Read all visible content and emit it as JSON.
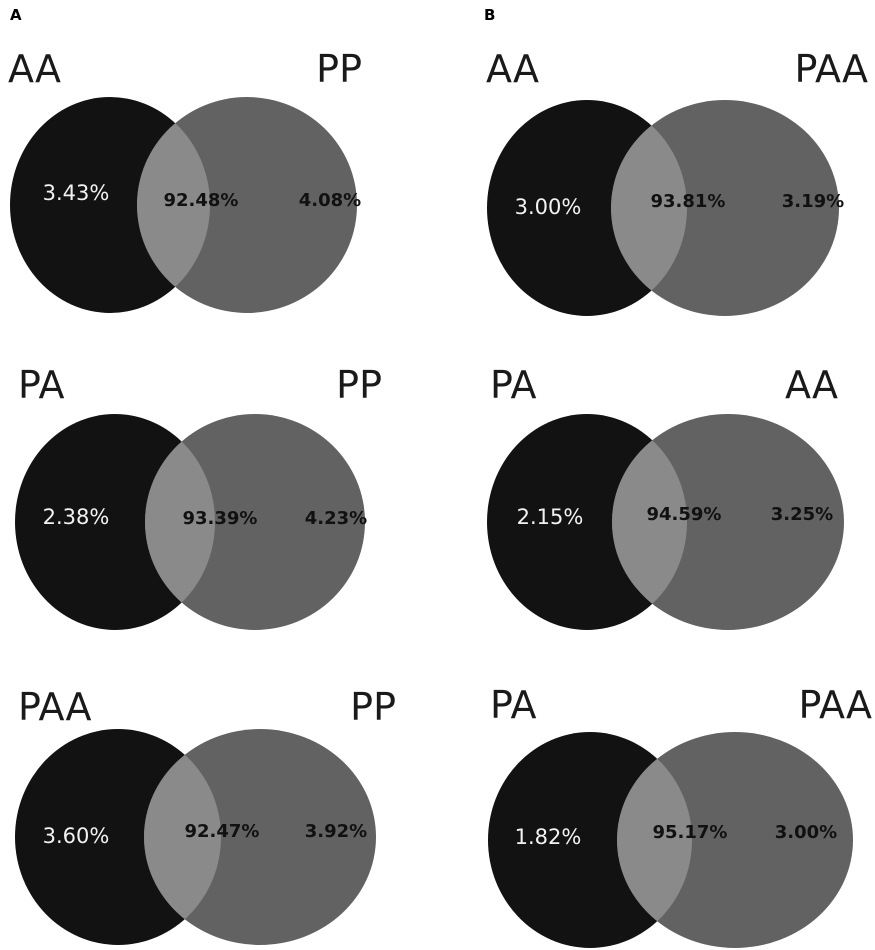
{
  "panels": [
    {
      "letter": "A",
      "diagrams": [
        {
          "left_label": "AA",
          "right_label": "PP",
          "left_only": "3.43%",
          "overlap": "92.48%",
          "right_only": "4.08%"
        },
        {
          "left_label": "PA",
          "right_label": "PP",
          "left_only": "2.38%",
          "overlap": "93.39%",
          "right_only": "4.23%"
        },
        {
          "left_label": "PAA",
          "right_label": "PP",
          "left_only": "3.60%",
          "overlap": "92.47%",
          "right_only": "3.92%"
        }
      ]
    },
    {
      "letter": "B",
      "diagrams": [
        {
          "left_label": "AA",
          "right_label": "PAA",
          "left_only": "3.00%",
          "overlap": "93.81%",
          "right_only": "3.19%"
        },
        {
          "left_label": "PA",
          "right_label": "AA",
          "left_only": "2.15%",
          "overlap": "94.59%",
          "right_only": "3.25%"
        },
        {
          "left_label": "PA",
          "right_label": "PAA",
          "left_only": "1.82%",
          "overlap": "95.17%",
          "right_only": "3.00%"
        }
      ]
    }
  ],
  "colors": {
    "left_circle": "#121212",
    "right_circle": "#626262",
    "overlap": "#8a8a8a"
  }
}
